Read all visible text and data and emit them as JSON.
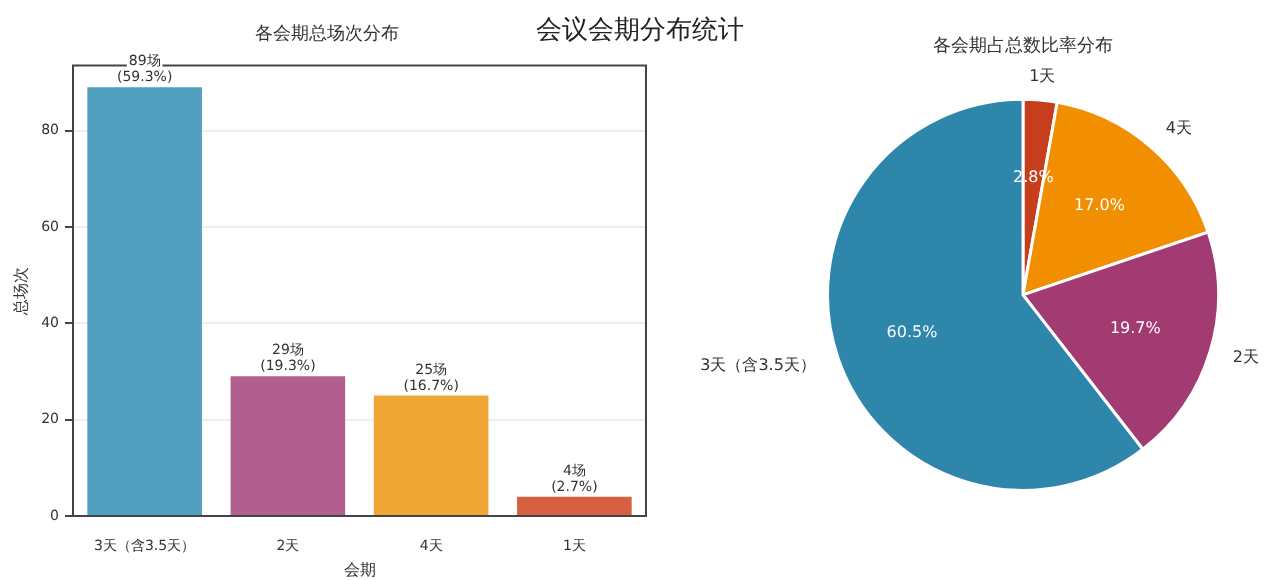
{
  "chart_data": [
    {
      "type": "bar",
      "title": "各会期总场次分布",
      "xlabel": "会期",
      "ylabel": "总场次",
      "annotations": [
        "会议会期分布统计"
      ],
      "categories": [
        "3天（含3.5天）",
        "2天",
        "4天",
        "1天"
      ],
      "values": [
        89,
        29,
        25,
        4
      ],
      "colors": [
        "#519fc0",
        "#b05f8e",
        "#f0a634",
        "#d6603f"
      ],
      "value_labels": [
        "89场\n(59.3%)",
        "29场\n(19.3%)",
        "25场\n(16.7%)",
        "4场\n(2.7%)"
      ],
      "ylim": [
        0,
        93.5
      ],
      "yticks": [
        0,
        20,
        40,
        60,
        80
      ],
      "grid": "y",
      "legend": false
    },
    {
      "type": "pie",
      "title": "各会期占总数比率分布",
      "categories": [
        "1天",
        "4天",
        "2天",
        "3天（含3.5天）"
      ],
      "values": [
        2.8,
        17.0,
        19.7,
        60.5
      ],
      "colors": [
        "#c73e1d",
        "#f18f01",
        "#a23b72",
        "#2e86ab"
      ],
      "value_labels": [
        "2.8%",
        "17.0%",
        "19.7%",
        "60.5%"
      ],
      "legend": false
    }
  ]
}
